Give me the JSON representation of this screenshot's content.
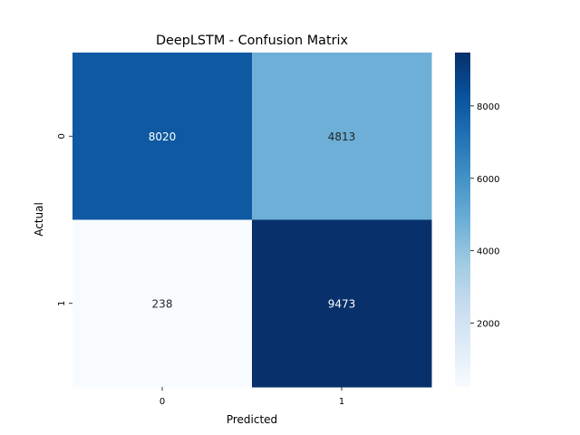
{
  "chart_data": {
    "type": "heatmap",
    "title": "DeepLSTM - Confusion Matrix",
    "xlabel": "Predicted",
    "ylabel": "Actual",
    "x_categories": [
      "0",
      "1"
    ],
    "y_categories": [
      "0",
      "1"
    ],
    "values": [
      [
        8020,
        4813
      ],
      [
        238,
        9473
      ]
    ],
    "colormap": "Blues",
    "vmin": 238,
    "vmax": 9473,
    "colorbar_ticks": [
      2000,
      4000,
      6000,
      8000
    ],
    "colorbar_tick_labels": [
      "2000",
      "4000",
      "6000",
      "8000"
    ],
    "colorbar_stops": [
      "#f7fbff",
      "#deebf7",
      "#c6dbef",
      "#9ecae1",
      "#6baed6",
      "#4292c6",
      "#2171b5",
      "#08519c",
      "#08306b"
    ]
  }
}
